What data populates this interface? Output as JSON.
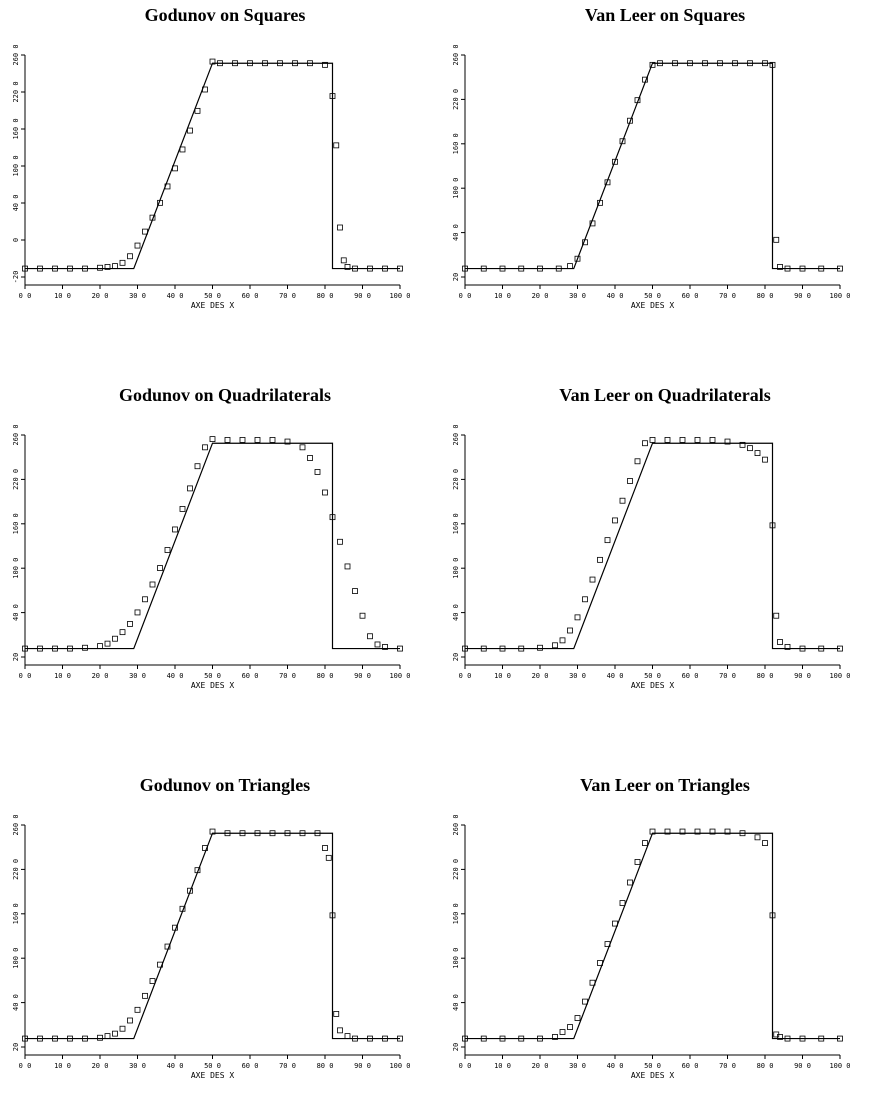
{
  "chart_data": [
    {
      "type": "line",
      "title": "Godunov on Squares",
      "xlabel": "AXE DES X",
      "xlim": [
        0,
        100
      ],
      "ylim": [
        -20,
        260
      ],
      "x_ticks": [
        "0 0",
        "10 0",
        "20 0",
        "30 0",
        "40 0",
        "50 0",
        "60 0",
        "70 0",
        "80 0",
        "90 0",
        "100 0"
      ],
      "y_ticks": [
        "-20",
        "0",
        "40 0",
        "100 0",
        "160 0",
        "220 0",
        "260 0"
      ],
      "exact": [
        [
          0,
          0
        ],
        [
          29,
          0
        ],
        [
          50,
          250
        ],
        [
          82,
          250
        ],
        [
          82,
          0
        ],
        [
          100,
          0
        ]
      ],
      "numerical": [
        [
          0,
          0
        ],
        [
          4,
          0
        ],
        [
          8,
          0
        ],
        [
          12,
          0
        ],
        [
          16,
          0
        ],
        [
          20,
          1
        ],
        [
          22,
          2
        ],
        [
          24,
          3
        ],
        [
          26,
          7
        ],
        [
          28,
          15
        ],
        [
          30,
          28
        ],
        [
          32,
          45
        ],
        [
          34,
          62
        ],
        [
          36,
          80
        ],
        [
          38,
          100
        ],
        [
          40,
          122
        ],
        [
          42,
          145
        ],
        [
          44,
          168
        ],
        [
          46,
          192
        ],
        [
          48,
          218
        ],
        [
          50,
          252
        ],
        [
          52,
          250
        ],
        [
          56,
          250
        ],
        [
          60,
          250
        ],
        [
          64,
          250
        ],
        [
          68,
          250
        ],
        [
          72,
          250
        ],
        [
          76,
          250
        ],
        [
          80,
          248
        ],
        [
          82,
          210
        ],
        [
          83,
          150
        ],
        [
          84,
          50
        ],
        [
          85,
          10
        ],
        [
          86,
          2
        ],
        [
          88,
          0
        ],
        [
          92,
          0
        ],
        [
          96,
          0
        ],
        [
          100,
          0
        ]
      ]
    },
    {
      "type": "line",
      "title": "Van Leer on Squares",
      "xlabel": "AXE DES X",
      "xlim": [
        0,
        100
      ],
      "ylim": [
        -20,
        260
      ],
      "x_ticks": [
        "0 0",
        "10 0",
        "20 0",
        "30 0",
        "40 0",
        "50 0",
        "60 0",
        "70 0",
        "80 0",
        "90 0",
        "100 0"
      ],
      "y_ticks": [
        "20",
        "40 0",
        "100 0",
        "160 0",
        "220 0",
        "260 0"
      ],
      "exact": [
        [
          0,
          0
        ],
        [
          29,
          0
        ],
        [
          50,
          250
        ],
        [
          82,
          250
        ],
        [
          82,
          0
        ],
        [
          100,
          0
        ]
      ],
      "numerical": [
        [
          0,
          0
        ],
        [
          5,
          0
        ],
        [
          10,
          0
        ],
        [
          15,
          0
        ],
        [
          20,
          0
        ],
        [
          25,
          0
        ],
        [
          28,
          3
        ],
        [
          30,
          12
        ],
        [
          32,
          32
        ],
        [
          34,
          55
        ],
        [
          36,
          80
        ],
        [
          38,
          105
        ],
        [
          40,
          130
        ],
        [
          42,
          155
        ],
        [
          44,
          180
        ],
        [
          46,
          205
        ],
        [
          48,
          230
        ],
        [
          50,
          248
        ],
        [
          52,
          250
        ],
        [
          56,
          250
        ],
        [
          60,
          250
        ],
        [
          64,
          250
        ],
        [
          68,
          250
        ],
        [
          72,
          250
        ],
        [
          76,
          250
        ],
        [
          80,
          250
        ],
        [
          82,
          248
        ],
        [
          83,
          35
        ],
        [
          84,
          2
        ],
        [
          86,
          0
        ],
        [
          90,
          0
        ],
        [
          95,
          0
        ],
        [
          100,
          0
        ]
      ]
    },
    {
      "type": "line",
      "title": "Godunov on Quadrilaterals",
      "xlabel": "AXE DES X",
      "xlim": [
        0,
        100
      ],
      "ylim": [
        -20,
        260
      ],
      "x_ticks": [
        "0 0",
        "10 0",
        "20 0",
        "30 0",
        "40 0",
        "50 0",
        "60 0",
        "70 0",
        "80 0",
        "90 0",
        "100 0"
      ],
      "y_ticks": [
        "20",
        "40 0",
        "100 0",
        "160 0",
        "220 0",
        "260 0"
      ],
      "exact": [
        [
          0,
          0
        ],
        [
          29,
          0
        ],
        [
          50,
          250
        ],
        [
          82,
          250
        ],
        [
          82,
          0
        ],
        [
          100,
          0
        ]
      ],
      "numerical": [
        [
          0,
          0
        ],
        [
          4,
          0
        ],
        [
          8,
          0
        ],
        [
          12,
          0
        ],
        [
          16,
          1
        ],
        [
          20,
          3
        ],
        [
          22,
          6
        ],
        [
          24,
          12
        ],
        [
          26,
          20
        ],
        [
          28,
          30
        ],
        [
          30,
          44
        ],
        [
          32,
          60
        ],
        [
          34,
          78
        ],
        [
          36,
          98
        ],
        [
          38,
          120
        ],
        [
          40,
          145
        ],
        [
          42,
          170
        ],
        [
          44,
          195
        ],
        [
          46,
          222
        ],
        [
          48,
          245
        ],
        [
          50,
          255
        ],
        [
          54,
          254
        ],
        [
          58,
          254
        ],
        [
          62,
          254
        ],
        [
          66,
          254
        ],
        [
          70,
          252
        ],
        [
          74,
          245
        ],
        [
          76,
          232
        ],
        [
          78,
          215
        ],
        [
          80,
          190
        ],
        [
          82,
          160
        ],
        [
          84,
          130
        ],
        [
          86,
          100
        ],
        [
          88,
          70
        ],
        [
          90,
          40
        ],
        [
          92,
          15
        ],
        [
          94,
          5
        ],
        [
          96,
          2
        ],
        [
          100,
          0
        ]
      ]
    },
    {
      "type": "line",
      "title": "Van Leer on Quadrilaterals",
      "xlabel": "AXE DES X",
      "xlim": [
        0,
        100
      ],
      "ylim": [
        -20,
        260
      ],
      "x_ticks": [
        "0 0",
        "10 0",
        "20 0",
        "30 0",
        "40 0",
        "50 0",
        "60 0",
        "70 0",
        "80 0",
        "90 0",
        "100 0"
      ],
      "y_ticks": [
        "20",
        "40 0",
        "100 0",
        "160 0",
        "220 0",
        "260 0"
      ],
      "exact": [
        [
          0,
          0
        ],
        [
          29,
          0
        ],
        [
          50,
          250
        ],
        [
          82,
          250
        ],
        [
          82,
          0
        ],
        [
          100,
          0
        ]
      ],
      "numerical": [
        [
          0,
          0
        ],
        [
          5,
          0
        ],
        [
          10,
          0
        ],
        [
          15,
          0
        ],
        [
          20,
          1
        ],
        [
          24,
          4
        ],
        [
          26,
          10
        ],
        [
          28,
          22
        ],
        [
          30,
          38
        ],
        [
          32,
          60
        ],
        [
          34,
          84
        ],
        [
          36,
          108
        ],
        [
          38,
          132
        ],
        [
          40,
          156
        ],
        [
          42,
          180
        ],
        [
          44,
          204
        ],
        [
          46,
          228
        ],
        [
          48,
          250
        ],
        [
          50,
          254
        ],
        [
          54,
          254
        ],
        [
          58,
          254
        ],
        [
          62,
          254
        ],
        [
          66,
          254
        ],
        [
          70,
          252
        ],
        [
          74,
          248
        ],
        [
          76,
          244
        ],
        [
          78,
          238
        ],
        [
          80,
          230
        ],
        [
          82,
          150
        ],
        [
          83,
          40
        ],
        [
          84,
          8
        ],
        [
          86,
          2
        ],
        [
          90,
          0
        ],
        [
          95,
          0
        ],
        [
          100,
          0
        ]
      ]
    },
    {
      "type": "line",
      "title": "Godunov on Triangles",
      "xlabel": "AXE DES X",
      "xlim": [
        0,
        100
      ],
      "ylim": [
        -20,
        260
      ],
      "x_ticks": [
        "0 0",
        "10 0",
        "20 0",
        "30 0",
        "40 0",
        "50 0",
        "60 0",
        "70 0",
        "80 0",
        "90 0",
        "100 0"
      ],
      "y_ticks": [
        "20",
        "40 0",
        "100 0",
        "160 0",
        "220 0",
        "260 0"
      ],
      "exact": [
        [
          0,
          0
        ],
        [
          29,
          0
        ],
        [
          50,
          250
        ],
        [
          82,
          250
        ],
        [
          82,
          0
        ],
        [
          100,
          0
        ]
      ],
      "numerical": [
        [
          0,
          0
        ],
        [
          4,
          0
        ],
        [
          8,
          0
        ],
        [
          12,
          0
        ],
        [
          16,
          0
        ],
        [
          20,
          1
        ],
        [
          22,
          3
        ],
        [
          24,
          6
        ],
        [
          26,
          12
        ],
        [
          28,
          22
        ],
        [
          30,
          35
        ],
        [
          32,
          52
        ],
        [
          34,
          70
        ],
        [
          36,
          90
        ],
        [
          38,
          112
        ],
        [
          40,
          135
        ],
        [
          42,
          158
        ],
        [
          44,
          180
        ],
        [
          46,
          205
        ],
        [
          48,
          232
        ],
        [
          50,
          252
        ],
        [
          54,
          250
        ],
        [
          58,
          250
        ],
        [
          62,
          250
        ],
        [
          66,
          250
        ],
        [
          70,
          250
        ],
        [
          74,
          250
        ],
        [
          78,
          250
        ],
        [
          80,
          232
        ],
        [
          81,
          220
        ],
        [
          82,
          150
        ],
        [
          83,
          30
        ],
        [
          84,
          10
        ],
        [
          86,
          3
        ],
        [
          88,
          0
        ],
        [
          92,
          0
        ],
        [
          96,
          0
        ],
        [
          100,
          0
        ]
      ]
    },
    {
      "type": "line",
      "title": "Van Leer on Triangles",
      "xlabel": "AXE DES X",
      "xlim": [
        0,
        100
      ],
      "ylim": [
        -20,
        260
      ],
      "x_ticks": [
        "0 0",
        "10 0",
        "20 0",
        "30 0",
        "40 0",
        "50 0",
        "60 0",
        "70 0",
        "80 0",
        "90 0",
        "100 0"
      ],
      "y_ticks": [
        "20",
        "40 0",
        "100 0",
        "160 0",
        "220 0",
        "260 0"
      ],
      "exact": [
        [
          0,
          0
        ],
        [
          29,
          0
        ],
        [
          50,
          250
        ],
        [
          82,
          250
        ],
        [
          82,
          0
        ],
        [
          100,
          0
        ]
      ],
      "numerical": [
        [
          0,
          0
        ],
        [
          5,
          0
        ],
        [
          10,
          0
        ],
        [
          15,
          0
        ],
        [
          20,
          0
        ],
        [
          24,
          2
        ],
        [
          26,
          8
        ],
        [
          28,
          14
        ],
        [
          30,
          25
        ],
        [
          32,
          45
        ],
        [
          34,
          68
        ],
        [
          36,
          92
        ],
        [
          38,
          115
        ],
        [
          40,
          140
        ],
        [
          42,
          165
        ],
        [
          44,
          190
        ],
        [
          46,
          215
        ],
        [
          48,
          238
        ],
        [
          50,
          252
        ],
        [
          54,
          252
        ],
        [
          58,
          252
        ],
        [
          62,
          252
        ],
        [
          66,
          252
        ],
        [
          70,
          252
        ],
        [
          74,
          250
        ],
        [
          78,
          245
        ],
        [
          80,
          238
        ],
        [
          82,
          150
        ],
        [
          83,
          5
        ],
        [
          84,
          2
        ],
        [
          86,
          0
        ],
        [
          90,
          0
        ],
        [
          95,
          0
        ],
        [
          100,
          0
        ]
      ]
    }
  ]
}
